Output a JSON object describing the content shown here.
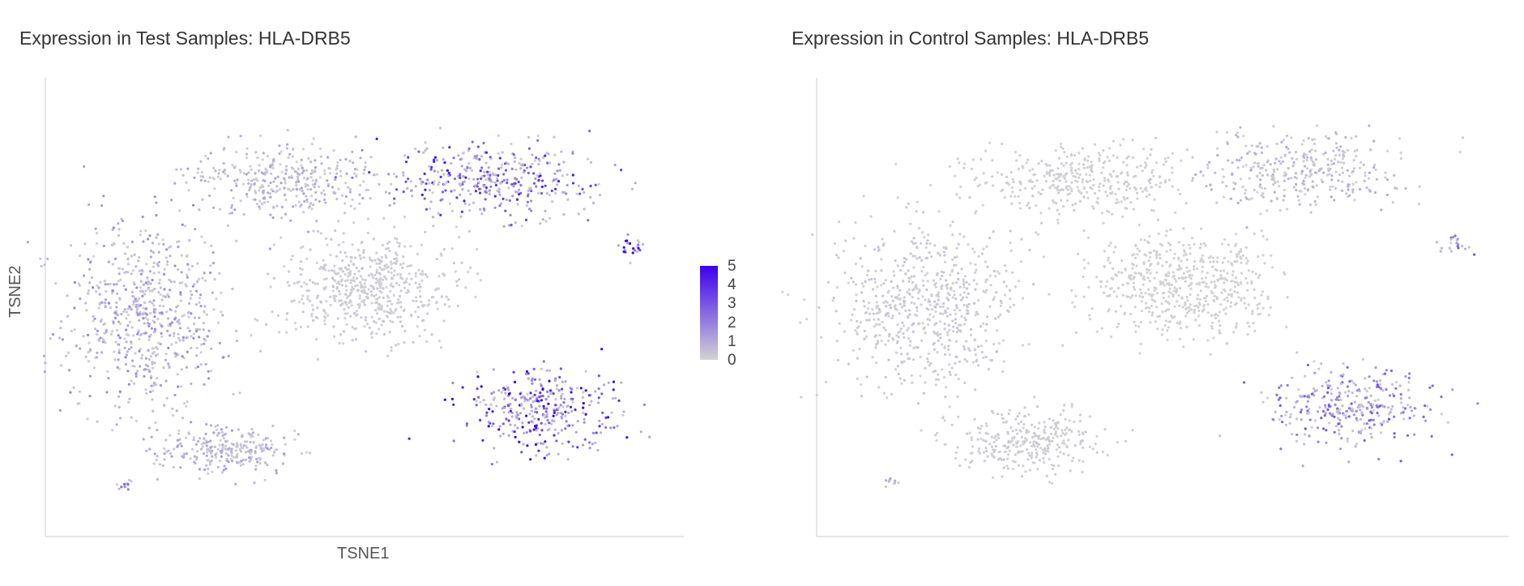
{
  "colors": {
    "low": "#d3d3d3",
    "high": "#3a00f0",
    "axis": "#cccccc"
  },
  "chart_data": [
    {
      "type": "scatter",
      "title": "Expression in Test Samples: HLA-DRB5",
      "xlabel": "TSNE1",
      "ylabel": "TSNE2",
      "xlim": [
        -50,
        50
      ],
      "ylim": [
        -50,
        50
      ],
      "color_scale": {
        "title": "",
        "min": 0,
        "max": 5,
        "ticks": [
          0,
          1,
          2,
          3,
          4,
          5
        ]
      },
      "clusters": [
        {
          "center": [
            -35,
            -2
          ],
          "spread": [
            12,
            20
          ],
          "expression": 1.1,
          "weight": 3.0
        },
        {
          "center": [
            -22,
            -32
          ],
          "spread": [
            10,
            5
          ],
          "expression": 0.8,
          "weight": 1.2
        },
        {
          "center": [
            -13,
            28
          ],
          "spread": [
            14,
            7
          ],
          "expression": 0.7,
          "weight": 1.6
        },
        {
          "center": [
            1,
            4
          ],
          "spread": [
            13,
            11
          ],
          "expression": 0.2,
          "weight": 2.6
        },
        {
          "center": [
            20,
            28
          ],
          "spread": [
            16,
            7
          ],
          "expression": 2.6,
          "weight": 1.8
        },
        {
          "center": [
            43,
            13
          ],
          "spread": [
            2,
            2
          ],
          "expression": 4.6,
          "weight": 0.1
        },
        {
          "center": [
            29,
            -23
          ],
          "spread": [
            11,
            8
          ],
          "expression": 3.3,
          "weight": 1.6
        },
        {
          "center": [
            -38,
            -40
          ],
          "spread": [
            1.5,
            1
          ],
          "expression": 1.8,
          "weight": 0.05
        }
      ]
    },
    {
      "type": "scatter",
      "title": "Expression in Control Samples: HLA-DRB5",
      "xlabel": "",
      "ylabel": "",
      "xlim": [
        -50,
        50
      ],
      "ylim": [
        -50,
        50
      ],
      "clusters": [
        {
          "center": [
            -35,
            0
          ],
          "spread": [
            12,
            18
          ],
          "expression": 0.25,
          "weight": 3.0
        },
        {
          "center": [
            -20,
            -30
          ],
          "spread": [
            10,
            6
          ],
          "expression": 0.15,
          "weight": 1.4
        },
        {
          "center": [
            -13,
            28
          ],
          "spread": [
            14,
            7
          ],
          "expression": 0.1,
          "weight": 1.6
        },
        {
          "center": [
            3,
            5
          ],
          "spread": [
            13,
            11
          ],
          "expression": 0.05,
          "weight": 2.6
        },
        {
          "center": [
            20,
            30
          ],
          "spread": [
            14,
            7
          ],
          "expression": 0.6,
          "weight": 1.6
        },
        {
          "center": [
            43,
            14
          ],
          "spread": [
            2,
            2
          ],
          "expression": 2.5,
          "weight": 0.1
        },
        {
          "center": [
            28,
            -22
          ],
          "spread": [
            11,
            8
          ],
          "expression": 1.8,
          "weight": 1.5
        },
        {
          "center": [
            -40,
            -39
          ],
          "spread": [
            1.5,
            1
          ],
          "expression": 1.0,
          "weight": 0.05
        }
      ]
    }
  ]
}
